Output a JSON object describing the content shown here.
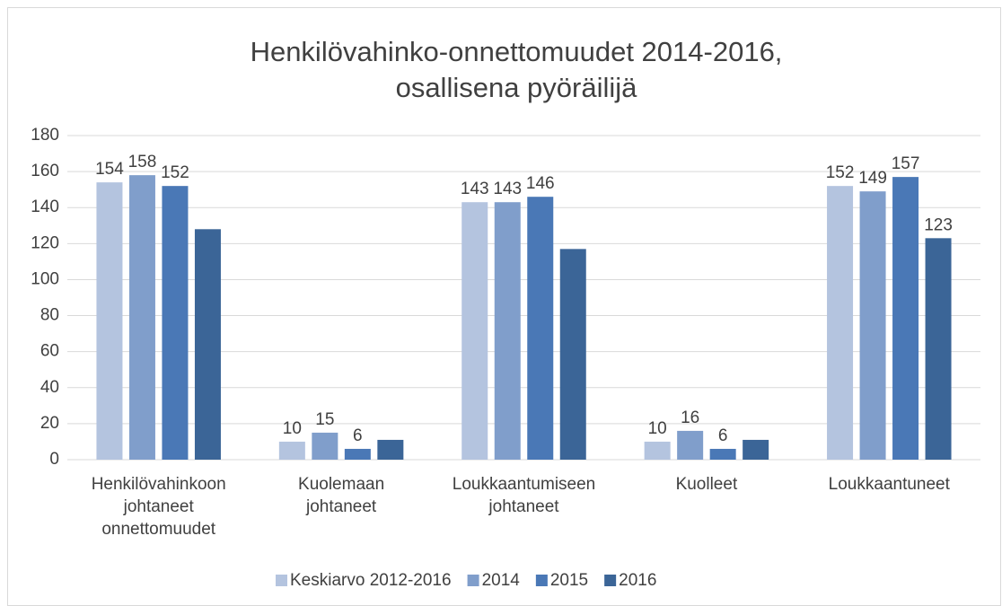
{
  "chart_data": {
    "type": "bar",
    "title": [
      "Henkilövahinko-onnettomuudet 2014-2016,",
      "osallisena pyöräilijä"
    ],
    "categories": [
      [
        "Henkilövahinkoon",
        "johtaneet",
        "onnettomuudet"
      ],
      [
        "Kuolemaan",
        "johtaneet"
      ],
      [
        "Loukkaantumiseen",
        "johtaneet"
      ],
      [
        "Kuolleet"
      ],
      [
        "Loukkaantuneet"
      ]
    ],
    "series": [
      {
        "name": "Keskiarvo 2012-2016",
        "color": "#b4c4df",
        "values": [
          154,
          10,
          143,
          10,
          152
        ],
        "value_labels": [
          "154",
          "10",
          "143",
          "10",
          "152"
        ]
      },
      {
        "name": "2014",
        "color": "#809ecb",
        "values": [
          158,
          15,
          143,
          16,
          149
        ],
        "value_labels": [
          "158",
          "15",
          "143",
          "16",
          "149"
        ]
      },
      {
        "name": "2015",
        "color": "#4a78b6",
        "values": [
          152,
          6,
          146,
          6,
          157
        ],
        "value_labels": [
          "152",
          "6",
          "146",
          "6",
          "157"
        ]
      },
      {
        "name": "2016",
        "color": "#3b6597",
        "values": [
          128,
          11,
          117,
          11,
          123
        ],
        "value_labels": [
          null,
          null,
          null,
          null,
          "123"
        ]
      }
    ],
    "ylim": [
      0,
      180
    ],
    "yticks": [
      0,
      20,
      40,
      60,
      80,
      100,
      120,
      140,
      160,
      180
    ],
    "grid": true,
    "legend": "bottom"
  }
}
